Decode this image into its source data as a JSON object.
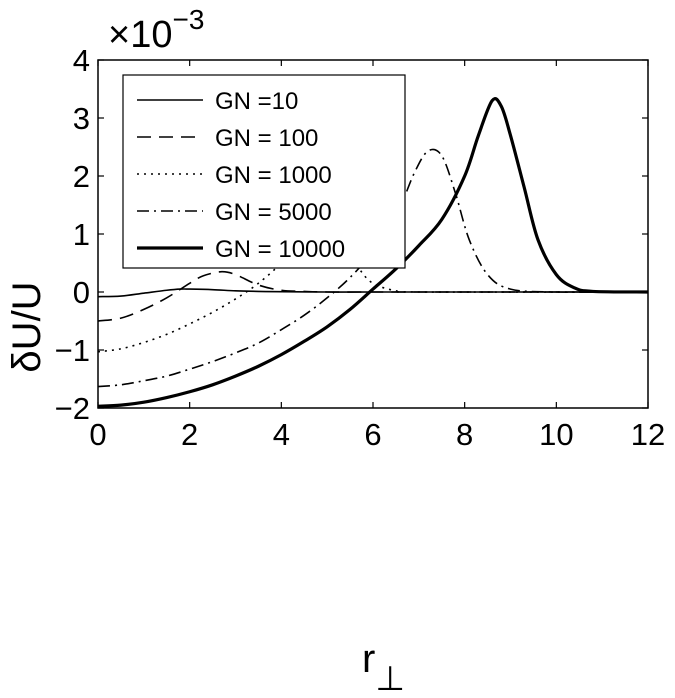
{
  "chart_data": {
    "type": "line",
    "title": "",
    "xlabel": "r",
    "xlabel_subscript": "⊥",
    "ylabel": "δU/U",
    "y_multiplier_prefix": "×10",
    "y_multiplier_exponent": "−3",
    "xlim": [
      0,
      12
    ],
    "ylim": [
      -2,
      4
    ],
    "x_ticks": [
      0,
      2,
      4,
      6,
      8,
      10,
      12
    ],
    "x_tick_labels": [
      "0",
      "2",
      "4",
      "6",
      "8",
      "10",
      "12"
    ],
    "y_ticks": [
      -2,
      -1,
      0,
      1,
      2,
      3,
      4
    ],
    "y_tick_labels": [
      "−2",
      "−1",
      "0",
      "1",
      "2",
      "3",
      "4"
    ],
    "grid": false,
    "legend_position": "top-left",
    "series": [
      {
        "name": "GN =10",
        "style": "solid",
        "x": [
          0,
          0.5,
          1,
          1.5,
          1.8,
          2,
          2.5,
          3,
          3.5,
          4,
          5,
          6,
          8,
          10,
          12
        ],
        "y": [
          -0.08,
          -0.07,
          -0.02,
          0.03,
          0.05,
          0.05,
          0.04,
          0.02,
          0.01,
          0.005,
          0,
          0,
          0,
          0,
          0
        ]
      },
      {
        "name": "GN = 100",
        "style": "dashed",
        "x": [
          0,
          0.5,
          1,
          1.5,
          2,
          2.3,
          2.7,
          3,
          3.5,
          4,
          4.5,
          5,
          6,
          8,
          12
        ],
        "y": [
          -0.5,
          -0.45,
          -0.3,
          -0.1,
          0.15,
          0.28,
          0.35,
          0.3,
          0.12,
          0.03,
          0.01,
          0,
          0,
          0,
          0
        ]
      },
      {
        "name": "GN = 1000",
        "style": "dotted",
        "x": [
          0,
          0.5,
          1,
          1.5,
          2,
          2.5,
          3,
          3.5,
          4,
          4.3,
          4.6,
          4.85,
          5.1,
          5.4,
          5.7,
          6,
          6.5,
          7,
          12
        ],
        "y": [
          -1.03,
          -0.98,
          -0.87,
          -0.73,
          -0.55,
          -0.35,
          -0.12,
          0.15,
          0.5,
          0.8,
          1.05,
          1.2,
          1.12,
          0.8,
          0.4,
          0.15,
          0.02,
          0,
          0
        ]
      },
      {
        "name": "GN = 5000",
        "style": "dash-dot",
        "x": [
          0,
          0.5,
          1,
          1.5,
          2,
          2.5,
          3,
          3.5,
          4,
          4.5,
          5,
          5.5,
          6,
          6.5,
          6.9,
          7.2,
          7.5,
          7.8,
          8.1,
          8.5,
          9,
          10,
          12
        ],
        "y": [
          -1.63,
          -1.6,
          -1.53,
          -1.45,
          -1.33,
          -1.2,
          -1.05,
          -0.88,
          -0.65,
          -0.4,
          -0.1,
          0.25,
          0.7,
          1.3,
          2.05,
          2.43,
          2.35,
          1.7,
          0.9,
          0.3,
          0.05,
          0,
          0
        ]
      },
      {
        "name": "GN = 10000",
        "style": "solid-thick",
        "x": [
          0,
          0.5,
          1,
          1.5,
          2,
          2.5,
          3,
          3.5,
          4,
          4.5,
          5,
          5.5,
          6,
          6.5,
          7,
          7.5,
          8,
          8.3,
          8.6,
          8.8,
          9,
          9.3,
          9.6,
          10,
          10.4,
          10.8,
          12
        ],
        "y": [
          -1.97,
          -1.95,
          -1.9,
          -1.82,
          -1.72,
          -1.6,
          -1.45,
          -1.28,
          -1.08,
          -0.85,
          -0.6,
          -0.3,
          0.05,
          0.4,
          0.8,
          1.25,
          2.0,
          2.7,
          3.3,
          3.2,
          2.7,
          1.8,
          0.9,
          0.3,
          0.07,
          0.01,
          0
        ]
      }
    ]
  }
}
